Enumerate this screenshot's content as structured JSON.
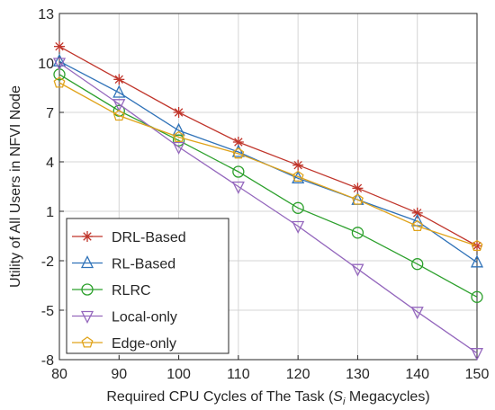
{
  "chart_data": {
    "type": "line",
    "title": "",
    "xlabel_prefix": "Required CPU Cycles of The Task (",
    "xlabel_symbol": "S",
    "xlabel_subscript": "i",
    "xlabel_suffix": " Megacycles)",
    "ylabel": "Utility of All Users in NFVI Node",
    "x": [
      80,
      90,
      100,
      110,
      120,
      130,
      140,
      150
    ],
    "xlim": [
      80,
      150
    ],
    "ylim": [
      -8,
      13
    ],
    "xticks": [
      80,
      90,
      100,
      110,
      120,
      130,
      140,
      150
    ],
    "yticks": [
      -8,
      -5,
      -2,
      1,
      4,
      7,
      10,
      13
    ],
    "grid": true,
    "legend_position": "bottom-left",
    "series": [
      {
        "name": "DRL-Based",
        "values": [
          11.0,
          9.0,
          7.0,
          5.2,
          3.8,
          2.4,
          0.9,
          -1.1
        ],
        "color": "#c0352b",
        "marker": "star"
      },
      {
        "name": "RL-Based",
        "values": [
          10.1,
          8.2,
          5.9,
          4.6,
          3.0,
          1.7,
          0.4,
          -2.1
        ],
        "color": "#2f72b8",
        "marker": "triangle-up"
      },
      {
        "name": "RLRC",
        "values": [
          9.3,
          7.1,
          5.3,
          3.4,
          1.2,
          -0.3,
          -2.2,
          -4.2
        ],
        "color": "#2ca02c",
        "marker": "circle"
      },
      {
        "name": "Local-only",
        "values": [
          10.0,
          7.5,
          4.9,
          2.5,
          0.1,
          -2.5,
          -5.1,
          -7.6
        ],
        "color": "#9467bd",
        "marker": "triangle-down"
      },
      {
        "name": "Edge-only",
        "values": [
          8.8,
          6.8,
          5.5,
          4.5,
          3.1,
          1.7,
          0.1,
          -1.1
        ],
        "color": "#e0a31a",
        "marker": "pentagon"
      }
    ]
  }
}
